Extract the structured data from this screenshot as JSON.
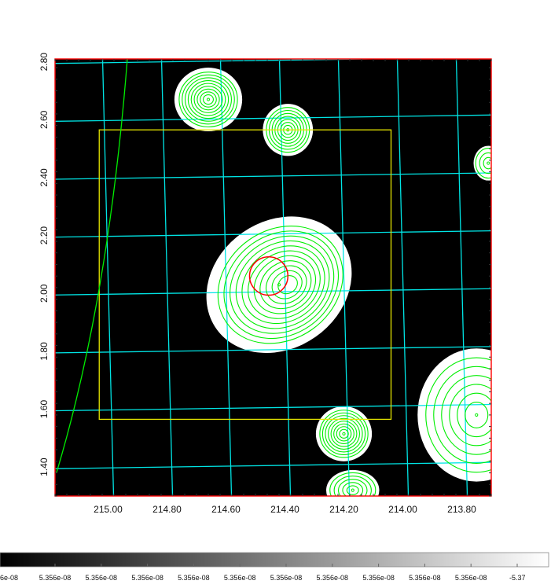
{
  "chart_data": {
    "type": "heatmap",
    "title": "",
    "xlabel": "",
    "ylabel": "",
    "xlim": [
      215.18,
      213.7
    ],
    "ylim": [
      1.3,
      2.81
    ],
    "x_ticks": [
      "215.00",
      "214.80",
      "214.60",
      "214.40",
      "214.20",
      "214.00",
      "213.80"
    ],
    "x_tick_values": [
      215.0,
      214.8,
      214.6,
      214.4,
      214.2,
      214.0,
      213.8
    ],
    "y_ticks": [
      "1.40",
      "1.60",
      "1.80",
      "2.00",
      "2.20",
      "2.40",
      "2.60",
      "2.80"
    ],
    "y_tick_values": [
      1.4,
      1.6,
      1.8,
      2.0,
      2.2,
      2.4,
      2.6,
      2.8
    ],
    "colorbar": {
      "tick_labels": [
        "5.356e-08",
        "5.356e-08",
        "5.356e-08",
        "5.356e-08",
        "5.356e-08",
        "5.356e-08",
        "5.356e-08",
        "5.356e-08",
        "5.356e-08",
        "5.356e-08",
        "-5.37"
      ],
      "left_label": "6e-08",
      "gradient": [
        "#000000",
        "#ffffff"
      ]
    },
    "sources": [
      {
        "x": 214.66,
        "y": 2.67,
        "rx": 0.115,
        "ry": 0.11,
        "contours": 9
      },
      {
        "x": 214.39,
        "y": 2.565,
        "rx": 0.085,
        "ry": 0.09,
        "contours": 7
      },
      {
        "x": 214.42,
        "y": 2.03,
        "rx": 0.26,
        "ry": 0.22,
        "contours": 11,
        "rotate": -35
      },
      {
        "x": 214.2,
        "y": 1.515,
        "rx": 0.095,
        "ry": 0.095,
        "contours": 8
      },
      {
        "x": 214.17,
        "y": 1.32,
        "rx": 0.09,
        "ry": 0.07,
        "contours": 5
      },
      {
        "x": 213.75,
        "y": 1.58,
        "rx": 0.2,
        "ry": 0.23,
        "contours": 6
      },
      {
        "x": 213.71,
        "y": 2.45,
        "rx": 0.05,
        "ry": 0.06,
        "contours": 3
      }
    ],
    "region_box": {
      "x1": 215.03,
      "x2": 214.04,
      "y1": 1.565,
      "y2": 2.565
    },
    "circle_marker": {
      "x": 214.455,
      "y": 2.06,
      "r": 0.065
    },
    "grid": true,
    "colors": {
      "background": "#000000",
      "grid": "#00e5e5",
      "contour": "#00ee00",
      "source_fill": "#ffffff",
      "region_box": "#e5e500",
      "marker": "#ff0000",
      "frame": "#ff0000"
    }
  }
}
